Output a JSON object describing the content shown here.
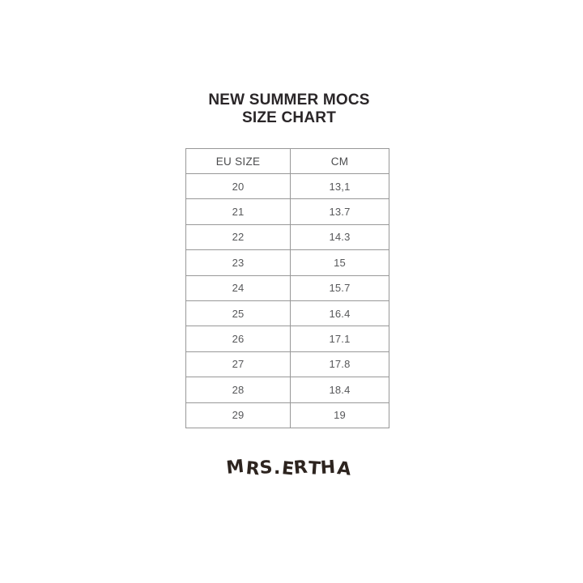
{
  "title": {
    "line1": "NEW SUMMER MOCS",
    "line2": "SIZE CHART"
  },
  "brand": {
    "logo_text": "MRS.ERTHA",
    "logo_color": "#2d241f"
  },
  "colors": {
    "background": "#ffffff",
    "title_text": "#2a2628",
    "table_border": "#989898",
    "table_text": "#57585a",
    "header_text": "#4b4c4e"
  },
  "chart_data": {
    "type": "table",
    "title": "NEW SUMMER MOCS",
    "subtitle": "SIZE CHART",
    "columns": [
      "EU SIZE",
      "CM"
    ],
    "rows": [
      [
        "20",
        "13,1"
      ],
      [
        "21",
        "13.7"
      ],
      [
        "22",
        "14.3"
      ],
      [
        "23",
        "15"
      ],
      [
        "24",
        "15.7"
      ],
      [
        "25",
        "16.4"
      ],
      [
        "26",
        "17.1"
      ],
      [
        "27",
        "17.8"
      ],
      [
        "28",
        "18.4"
      ],
      [
        "29",
        "19"
      ]
    ]
  }
}
